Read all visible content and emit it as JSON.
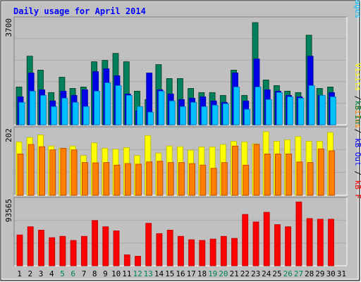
{
  "title": "Daily usage for April 2014",
  "colors": {
    "background": "#C0C0C0",
    "frame": "#E0E0E0",
    "title": "#0000FF",
    "hits": "#00805C",
    "files": "#0000E6",
    "pages": "#00C0FF",
    "visits": "#FFFF00",
    "sites": "#FF8000",
    "kbin": "#008040",
    "kbout": "#0000FF",
    "kbf": "#FF0000",
    "weekend": "#00805C",
    "weekday": "#000000"
  },
  "chart_data": [
    {
      "type": "bar",
      "name": "hits-files-pages",
      "ymax_label": "3700",
      "ylim": [
        0,
        3700
      ],
      "right_label_parts": [
        {
          "text": "Pages",
          "color": "#00C0FF"
        },
        {
          "text": " / ",
          "color": "#000000"
        },
        {
          "text": "Files",
          "color": "#0000E6"
        },
        {
          "text": " / ",
          "color": "#000000"
        },
        {
          "text": "Hits",
          "color": "#00805C"
        }
      ],
      "series": [
        {
          "name": "Hits",
          "values": [
            1350,
            2450,
            1950,
            1150,
            1700,
            1300,
            1350,
            2250,
            2300,
            2550,
            2250,
            1200,
            900,
            2150,
            1650,
            1650,
            1300,
            1150,
            1150,
            1050,
            1950,
            1050,
            3650,
            1600,
            1400,
            1200,
            1150,
            3200,
            1300,
            1350
          ]
        },
        {
          "name": "Files",
          "values": [
            1000,
            1850,
            1250,
            850,
            1200,
            1050,
            1250,
            1900,
            2000,
            1750,
            1100,
            500,
            1850,
            1250,
            1100,
            900,
            950,
            1000,
            850,
            800,
            1850,
            850,
            2350,
            1250,
            1200,
            1050,
            1000,
            2450,
            1050,
            1150
          ]
        },
        {
          "name": "Pages",
          "values": [
            800,
            1200,
            1050,
            650,
            950,
            800,
            650,
            1200,
            1500,
            1400,
            1050,
            650,
            450,
            1200,
            850,
            650,
            800,
            650,
            700,
            750,
            1350,
            550,
            1350,
            900,
            1150,
            1000,
            950,
            1400,
            1050,
            1000
          ]
        }
      ]
    },
    {
      "type": "bar",
      "name": "visits-sites",
      "ymax_label": "202",
      "ylim": [
        0,
        202
      ],
      "right_label_parts": [
        {
          "text": "Sites",
          "color": "#FF8000"
        },
        {
          "text": " / ",
          "color": "#000000"
        },
        {
          "text": "Visits",
          "color": "#FFFF00"
        }
      ],
      "series": [
        {
          "name": "Visits",
          "values": [
            168,
            182,
            190,
            155,
            148,
            155,
            125,
            165,
            148,
            145,
            150,
            125,
            188,
            133,
            155,
            153,
            142,
            152,
            152,
            160,
            170,
            168,
            162,
            200,
            170,
            175,
            185,
            170,
            170,
            198
          ]
        },
        {
          "name": "Sites",
          "values": [
            130,
            160,
            153,
            143,
            148,
            143,
            103,
            102,
            103,
            95,
            100,
            98,
            105,
            107,
            103,
            103,
            100,
            95,
            85,
            103,
            155,
            95,
            160,
            130,
            130,
            130,
            105,
            103,
            146,
            140
          ]
        }
      ]
    },
    {
      "type": "bar",
      "name": "kbytes",
      "ymax_label": "93565",
      "ylim": [
        0,
        93565
      ],
      "right_label_parts": [
        {
          "text": "kB F",
          "color": "#FF0000"
        },
        {
          "text": " / ",
          "color": "#000000"
        },
        {
          "text": "kB Out",
          "color": "#0000FF"
        },
        {
          "text": " / ",
          "color": "#000000"
        },
        {
          "text": "kB In",
          "color": "#008040"
        }
      ],
      "series": [
        {
          "name": "kB F",
          "values": [
            45000,
            57000,
            52000,
            41000,
            43000,
            37000,
            43000,
            66000,
            57000,
            51000,
            16000,
            14000,
            62000,
            47000,
            52000,
            43000,
            38000,
            37000,
            39000,
            43000,
            40000,
            75000,
            64000,
            78000,
            60000,
            57000,
            93000,
            69000,
            68000,
            68000
          ]
        }
      ]
    }
  ],
  "days": [
    "1",
    "2",
    "3",
    "4",
    "5",
    "6",
    "7",
    "8",
    "9",
    "10",
    "11",
    "12",
    "13",
    "14",
    "15",
    "16",
    "17",
    "18",
    "19",
    "20",
    "21",
    "22",
    "23",
    "24",
    "25",
    "26",
    "27",
    "28",
    "29",
    "30",
    "31"
  ],
  "weekend_days": [
    "5",
    "6",
    "12",
    "13",
    "19",
    "20",
    "26",
    "27"
  ]
}
